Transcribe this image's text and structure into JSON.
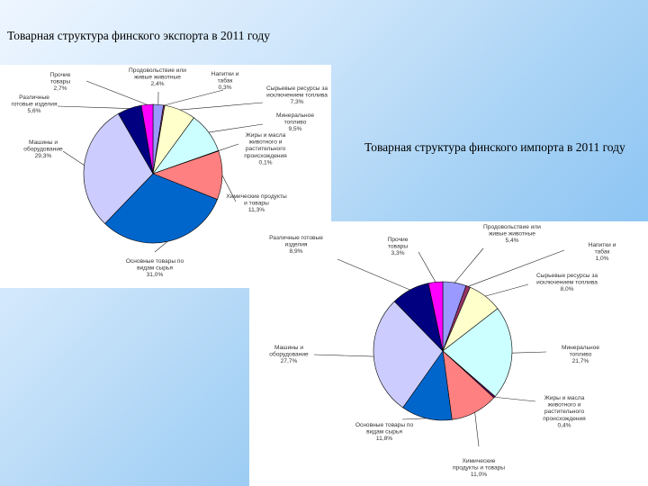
{
  "titles": {
    "export": "Товарная структура финского экспорта в 2011 году",
    "import": "Товарная структура финского импорта в 2011 году"
  },
  "chart_data": [
    {
      "type": "pie",
      "title": "Товарная структура финского экспорта в 2011 году",
      "slices": [
        {
          "label": "Продовольствие или живые животные",
          "value": 2.4,
          "value_label": "2,4%",
          "color": "#9999ff"
        },
        {
          "label": "Напитки и табак",
          "value": 0.3,
          "value_label": "0,3%",
          "color": "#993366"
        },
        {
          "label": "Сырьевые ресурсы за исключением топлива",
          "value": 7.3,
          "value_label": "7,3%",
          "color": "#ffffcc"
        },
        {
          "label": "Минеральное топливо",
          "value": 9.5,
          "value_label": "9,5%",
          "color": "#ccffff"
        },
        {
          "label": "Жиры и масла животного и растительного происхождения",
          "value": 0.1,
          "value_label": "0,1%",
          "color": "#660066"
        },
        {
          "label": "Химические продукты и товары",
          "value": 11.3,
          "value_label": "11,3%",
          "color": "#ff8080"
        },
        {
          "label": "Основные товары по видам сырья",
          "value": 31.0,
          "value_label": "31,0%",
          "color": "#0066cc"
        },
        {
          "label": "Машины и оборудование",
          "value": 29.3,
          "value_label": "29,3%",
          "color": "#ccccff"
        },
        {
          "label": "Различные готовые изделия",
          "value": 5.6,
          "value_label": "5,6%",
          "color": "#000080"
        },
        {
          "label": "Прочие товары",
          "value": 2.7,
          "value_label": "2,7%",
          "color": "#ff00ff"
        }
      ]
    },
    {
      "type": "pie",
      "title": "Товарная структура финского импорта в 2011 году",
      "slices": [
        {
          "label": "Продовольствие или живые животные",
          "value": 5.4,
          "value_label": "5,4%",
          "color": "#9999ff"
        },
        {
          "label": "Напитки и табак",
          "value": 1.0,
          "value_label": "1,0%",
          "color": "#993366"
        },
        {
          "label": "Сырьевые ресурсы за исключением топлива",
          "value": 8.0,
          "value_label": "8,0%",
          "color": "#ffffcc"
        },
        {
          "label": "Минеральное топливо",
          "value": 21.7,
          "value_label": "21,7%",
          "color": "#ccffff"
        },
        {
          "label": "Жиры и масла животного и растительного происхождения",
          "value": 0.4,
          "value_label": "0,4%",
          "color": "#660066"
        },
        {
          "label": "Химические продукты и товары",
          "value": 11.0,
          "value_label": "11,0%",
          "color": "#ff8080"
        },
        {
          "label": "Основные товары по видам сырья",
          "value": 11.8,
          "value_label": "11,8%",
          "color": "#0066cc"
        },
        {
          "label": "Машины и оборудование",
          "value": 27.7,
          "value_label": "27,7%",
          "color": "#ccccff"
        },
        {
          "label": "Различные готовые изделия",
          "value": 8.9,
          "value_label": "8,9%",
          "color": "#000080"
        },
        {
          "label": "Прочие товары",
          "value": 3.3,
          "value_label": "3,3%",
          "color": "#ff00ff"
        }
      ]
    }
  ]
}
